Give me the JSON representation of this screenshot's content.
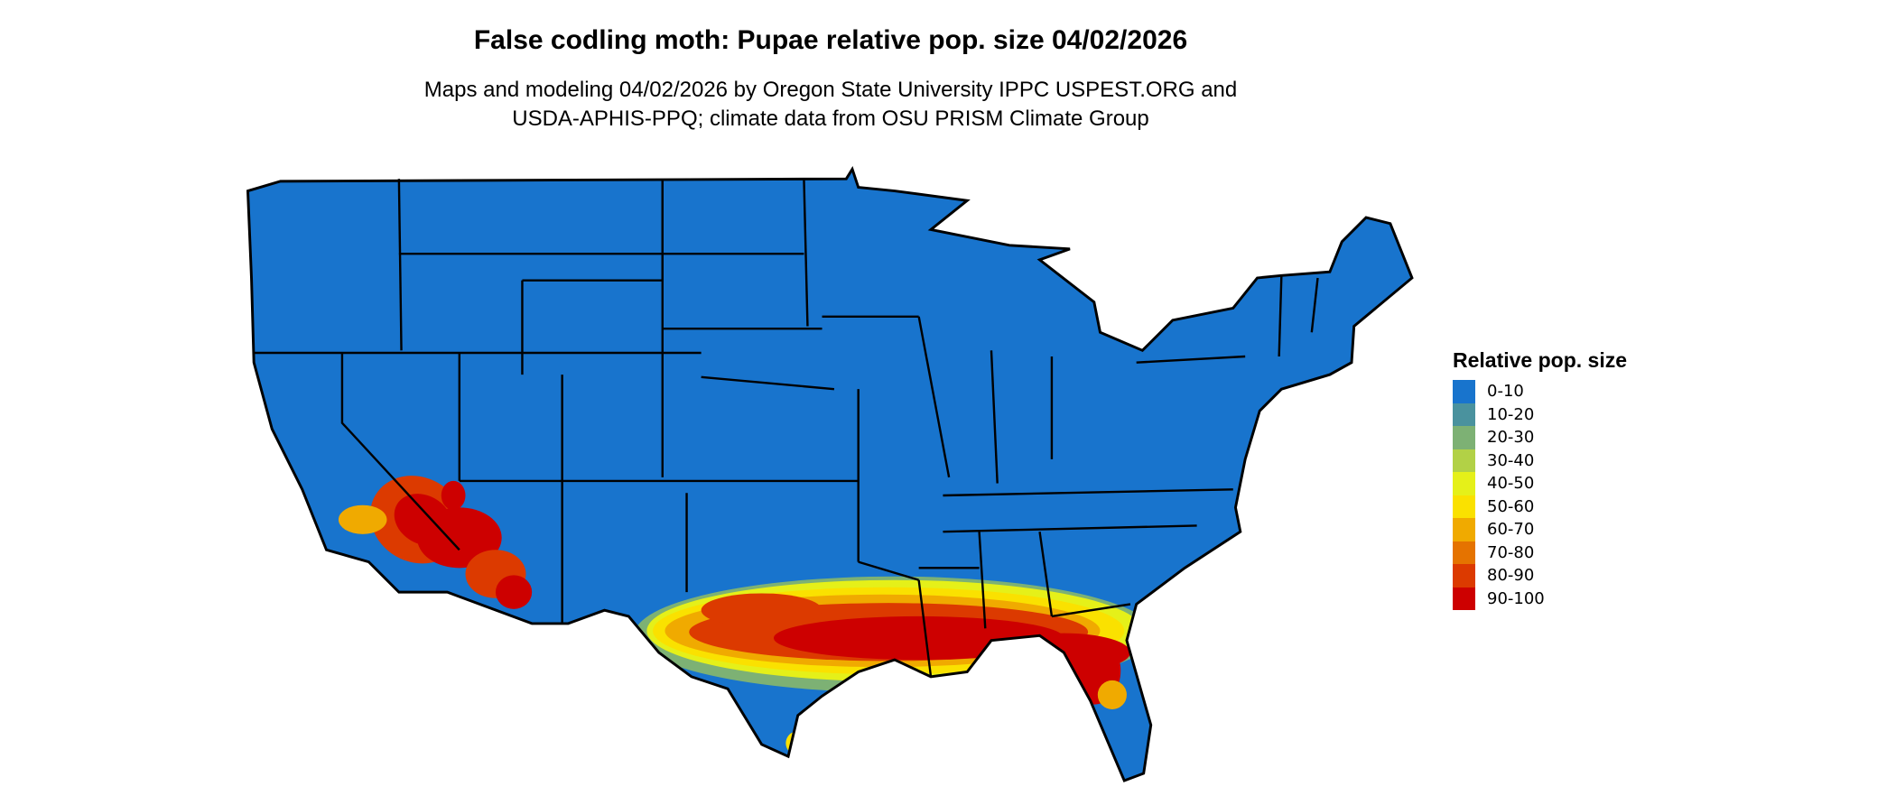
{
  "chart_data": {
    "type": "heatmap",
    "title": "False codling moth: Pupae relative pop. size 04/02/2026",
    "subtitle_lines": [
      "Maps and modeling 04/02/2026 by Oregon State University IPPC USPEST.ORG and",
      "USDA-APHIS-PPQ; climate data from OSU PRISM Climate Group"
    ],
    "region": "Contiguous United States",
    "legend": {
      "title": "Relative pop. size",
      "placement": "right",
      "classes": [
        {
          "label": "0-10",
          "color": "#1874cd"
        },
        {
          "label": "10-20",
          "color": "#4a929e"
        },
        {
          "label": "20-30",
          "color": "#7db174"
        },
        {
          "label": "30-40",
          "color": "#b2d146"
        },
        {
          "label": "40-50",
          "color": "#e5f019"
        },
        {
          "label": "50-60",
          "color": "#fae100"
        },
        {
          "label": "60-70",
          "color": "#f0aa00"
        },
        {
          "label": "70-80",
          "color": "#e57300"
        },
        {
          "label": "80-90",
          "color": "#dc3a00"
        },
        {
          "label": "90-100",
          "color": "#cd0000"
        }
      ]
    }
  }
}
